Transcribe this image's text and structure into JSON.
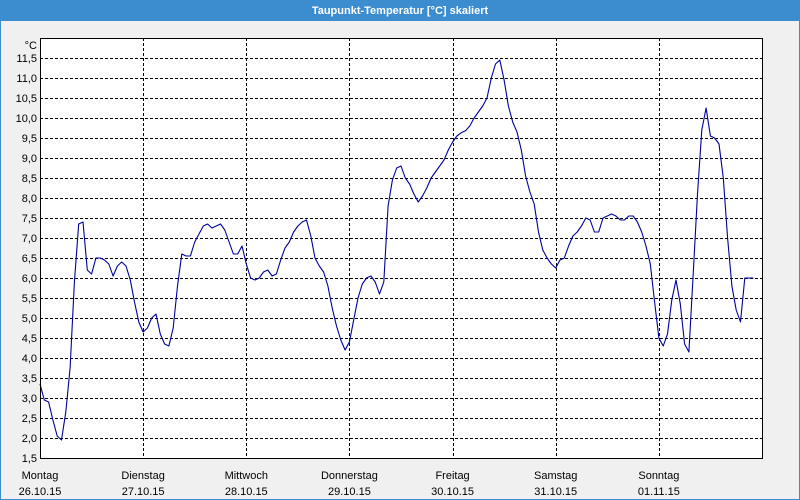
{
  "colors": {
    "title_bar": "#3c8dd0",
    "title_text": "#ffffff",
    "panel_background": "#f0f0f0",
    "plot_background": "#ffffff",
    "grid": "#000000",
    "axis": "#000000",
    "text": "#000000"
  },
  "chart_data": {
    "type": "line",
    "title": "Taupunkt-Temperatur [°C] skaliert",
    "ylabel": "°C",
    "ylim": [
      1.5,
      12.0
    ],
    "xlim": [
      "26.10.15 00:00",
      "02.11.15 00:00"
    ],
    "grid": true,
    "ytick_labels": [
      "1,5",
      "2,0",
      "2,5",
      "3,0",
      "3,5",
      "4,0",
      "4,5",
      "5,0",
      "5,5",
      "6,0",
      "6,5",
      "7,0",
      "7,5",
      "8,0",
      "8,5",
      "9,0",
      "9,5",
      "10,0",
      "10,5",
      "11,0",
      "11,5"
    ],
    "xticks": [
      {
        "at": "26.10.15 00:00",
        "day": "Montag",
        "date": "26.10.15"
      },
      {
        "at": "27.10.15 00:00",
        "day": "Dienstag",
        "date": "27.10.15"
      },
      {
        "at": "28.10.15 00:00",
        "day": "Mittwoch",
        "date": "28.10.15"
      },
      {
        "at": "29.10.15 00:00",
        "day": "Donnerstag",
        "date": "29.10.15"
      },
      {
        "at": "30.10.15 00:00",
        "day": "Freitag",
        "date": "30.10.15"
      },
      {
        "at": "31.10.15 00:00",
        "day": "Samstag",
        "date": "31.10.15"
      },
      {
        "at": "01.11.15 00:00",
        "day": "Sonntag",
        "date": "01.11.15"
      }
    ],
    "x": [
      "26.10.15 00:00",
      "26.10.15 01:00",
      "26.10.15 02:00",
      "26.10.15 03:00",
      "26.10.15 04:00",
      "26.10.15 05:00",
      "26.10.15 06:00",
      "26.10.15 07:00",
      "26.10.15 08:00",
      "26.10.15 09:00",
      "26.10.15 10:00",
      "26.10.15 11:00",
      "26.10.15 12:00",
      "26.10.15 13:00",
      "26.10.15 14:00",
      "26.10.15 15:00",
      "26.10.15 16:00",
      "26.10.15 17:00",
      "26.10.15 18:00",
      "26.10.15 19:00",
      "26.10.15 20:00",
      "26.10.15 21:00",
      "26.10.15 22:00",
      "26.10.15 23:00",
      "27.10.15 00:00",
      "27.10.15 01:00",
      "27.10.15 02:00",
      "27.10.15 03:00",
      "27.10.15 04:00",
      "27.10.15 05:00",
      "27.10.15 06:00",
      "27.10.15 07:00",
      "27.10.15 08:00",
      "27.10.15 09:00",
      "27.10.15 10:00",
      "27.10.15 11:00",
      "27.10.15 12:00",
      "27.10.15 13:00",
      "27.10.15 14:00",
      "27.10.15 15:00",
      "27.10.15 16:00",
      "27.10.15 17:00",
      "27.10.15 18:00",
      "27.10.15 19:00",
      "27.10.15 20:00",
      "27.10.15 21:00",
      "27.10.15 22:00",
      "27.10.15 23:00",
      "28.10.15 00:00",
      "28.10.15 01:00",
      "28.10.15 02:00",
      "28.10.15 03:00",
      "28.10.15 04:00",
      "28.10.15 05:00",
      "28.10.15 06:00",
      "28.10.15 07:00",
      "28.10.15 08:00",
      "28.10.15 09:00",
      "28.10.15 10:00",
      "28.10.15 11:00",
      "28.10.15 12:00",
      "28.10.15 13:00",
      "28.10.15 14:00",
      "28.10.15 15:00",
      "28.10.15 16:00",
      "28.10.15 17:00",
      "28.10.15 18:00",
      "28.10.15 19:00",
      "28.10.15 20:00",
      "28.10.15 21:00",
      "28.10.15 22:00",
      "28.10.15 23:00",
      "29.10.15 00:00",
      "29.10.15 01:00",
      "29.10.15 02:00",
      "29.10.15 03:00",
      "29.10.15 04:00",
      "29.10.15 05:00",
      "29.10.15 06:00",
      "29.10.15 07:00",
      "29.10.15 08:00",
      "29.10.15 09:00",
      "29.10.15 10:00",
      "29.10.15 11:00",
      "29.10.15 12:00",
      "29.10.15 13:00",
      "29.10.15 14:00",
      "29.10.15 15:00",
      "29.10.15 16:00",
      "29.10.15 17:00",
      "29.10.15 18:00",
      "29.10.15 19:00",
      "29.10.15 20:00",
      "29.10.15 21:00",
      "29.10.15 22:00",
      "29.10.15 23:00",
      "30.10.15 00:00",
      "30.10.15 01:00",
      "30.10.15 02:00",
      "30.10.15 03:00",
      "30.10.15 04:00",
      "30.10.15 05:00",
      "30.10.15 06:00",
      "30.10.15 07:00",
      "30.10.15 08:00",
      "30.10.15 09:00",
      "30.10.15 10:00",
      "30.10.15 11:00",
      "30.10.15 12:00",
      "30.10.15 13:00",
      "30.10.15 14:00",
      "30.10.15 15:00",
      "30.10.15 16:00",
      "30.10.15 17:00",
      "30.10.15 18:00",
      "30.10.15 19:00",
      "30.10.15 20:00",
      "30.10.15 21:00",
      "30.10.15 22:00",
      "30.10.15 23:00",
      "31.10.15 00:00",
      "31.10.15 01:00",
      "31.10.15 02:00",
      "31.10.15 03:00",
      "31.10.15 04:00",
      "31.10.15 05:00",
      "31.10.15 06:00",
      "31.10.15 07:00",
      "31.10.15 08:00",
      "31.10.15 09:00",
      "31.10.15 10:00",
      "31.10.15 11:00",
      "31.10.15 12:00",
      "31.10.15 13:00",
      "31.10.15 14:00",
      "31.10.15 15:00",
      "31.10.15 16:00",
      "31.10.15 17:00",
      "31.10.15 18:00",
      "31.10.15 19:00",
      "31.10.15 20:00",
      "31.10.15 21:00",
      "31.10.15 22:00",
      "31.10.15 23:00",
      "01.11.15 00:00",
      "01.11.15 01:00",
      "01.11.15 02:00",
      "01.11.15 03:00",
      "01.11.15 04:00",
      "01.11.15 05:00",
      "01.11.15 06:00",
      "01.11.15 07:00",
      "01.11.15 08:00",
      "01.11.15 09:00",
      "01.11.15 10:00",
      "01.11.15 11:00",
      "01.11.15 12:00",
      "01.11.15 13:00",
      "01.11.15 14:00",
      "01.11.15 15:00",
      "01.11.15 16:00",
      "01.11.15 17:00",
      "01.11.15 18:00",
      "01.11.15 19:00",
      "01.11.15 20:00",
      "01.11.15 21:00",
      "01.11.15 22:00"
    ],
    "series": [
      {
        "color": "#00009c",
        "values": [
          3.35,
          2.95,
          2.9,
          2.45,
          2.05,
          1.95,
          2.65,
          3.75,
          5.9,
          7.35,
          7.4,
          6.2,
          6.1,
          6.5,
          6.5,
          6.45,
          6.35,
          6.05,
          6.3,
          6.4,
          6.3,
          5.95,
          5.4,
          4.9,
          4.65,
          4.75,
          5.0,
          5.1,
          4.6,
          4.35,
          4.3,
          4.75,
          5.8,
          6.6,
          6.55,
          6.55,
          6.9,
          7.1,
          7.3,
          7.35,
          7.25,
          7.3,
          7.35,
          7.2,
          6.9,
          6.6,
          6.6,
          6.8,
          6.35,
          6.0,
          5.95,
          6.0,
          6.15,
          6.2,
          6.05,
          6.1,
          6.45,
          6.75,
          6.9,
          7.15,
          7.3,
          7.4,
          7.45,
          7.05,
          6.5,
          6.3,
          6.15,
          5.8,
          5.25,
          4.8,
          4.45,
          4.2,
          4.4,
          4.95,
          5.5,
          5.85,
          6.0,
          6.05,
          5.9,
          5.6,
          5.9,
          7.8,
          8.45,
          8.75,
          8.8,
          8.5,
          8.35,
          8.1,
          7.9,
          8.05,
          8.25,
          8.5,
          8.65,
          8.8,
          8.95,
          9.2,
          9.4,
          9.55,
          9.63,
          9.68,
          9.8,
          10.0,
          10.15,
          10.3,
          10.5,
          11.0,
          11.35,
          11.45,
          10.95,
          10.3,
          9.9,
          9.65,
          9.2,
          8.55,
          8.15,
          7.85,
          7.15,
          6.7,
          6.5,
          6.35,
          6.25,
          6.45,
          6.5,
          6.8,
          7.05,
          7.15,
          7.3,
          7.5,
          7.45,
          7.15,
          7.15,
          7.5,
          7.55,
          7.6,
          7.55,
          7.45,
          7.45,
          7.55,
          7.55,
          7.4,
          7.15,
          6.8,
          6.35,
          5.4,
          4.5,
          4.3,
          4.6,
          5.45,
          5.95,
          5.35,
          4.35,
          4.15,
          6.1,
          8.1,
          9.7,
          10.25,
          9.55,
          9.5,
          9.35,
          8.5,
          7.0,
          5.8,
          5.2,
          4.9,
          6.0,
          6.0,
          6.0
        ]
      }
    ]
  }
}
